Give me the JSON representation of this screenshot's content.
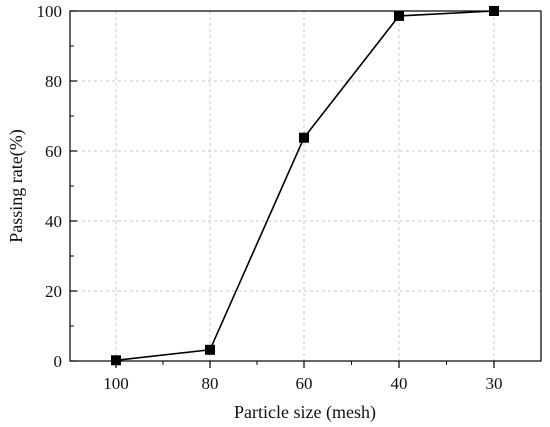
{
  "chart_data": {
    "type": "line",
    "categories": [
      "100",
      "80",
      "60",
      "40",
      "30"
    ],
    "series": [
      {
        "values": [
          0.2,
          3.2,
          63.8,
          98.6,
          100
        ]
      }
    ],
    "xlabel": "Particle size (mesh)",
    "ylabel": "Passing rate(%)",
    "ylim": [
      0,
      100
    ],
    "yticks": [
      "0",
      "20",
      "40",
      "60",
      "80",
      "100"
    ],
    "grid": true,
    "marker": "square"
  }
}
